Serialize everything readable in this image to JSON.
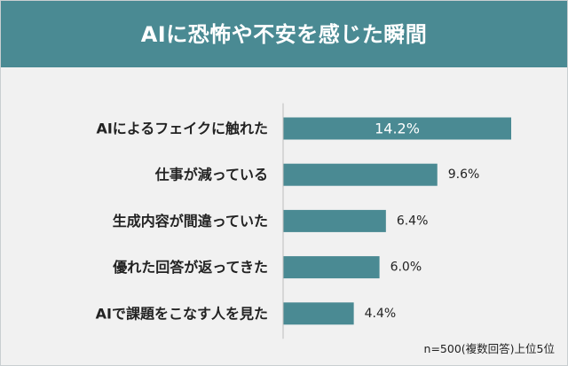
{
  "header": {
    "title": "AIに恐怖や不安を感じた瞬間"
  },
  "footnote": "n=500(複数回答)上位5位",
  "colors": {
    "header_bg": "#4a8a93",
    "bar": "#4a8a93",
    "background": "#f1f1f1"
  },
  "chart_data": {
    "type": "bar",
    "orientation": "horizontal",
    "title": "AIに恐怖や不安を感じた瞬間",
    "categories": [
      "AIによるフェイクに触れた",
      "仕事が減っている",
      "生成内容が間違っていた",
      "優れた回答が返ってきた",
      "AIで課題をこなす人を見た"
    ],
    "values": [
      14.2,
      9.6,
      6.4,
      6.0,
      4.4
    ],
    "value_labels": [
      "14.2%",
      "9.6%",
      "6.4%",
      "6.0%",
      "4.4%"
    ],
    "unit": "%",
    "xlim": [
      0,
      14.2
    ],
    "grid": false,
    "legend": "none"
  }
}
